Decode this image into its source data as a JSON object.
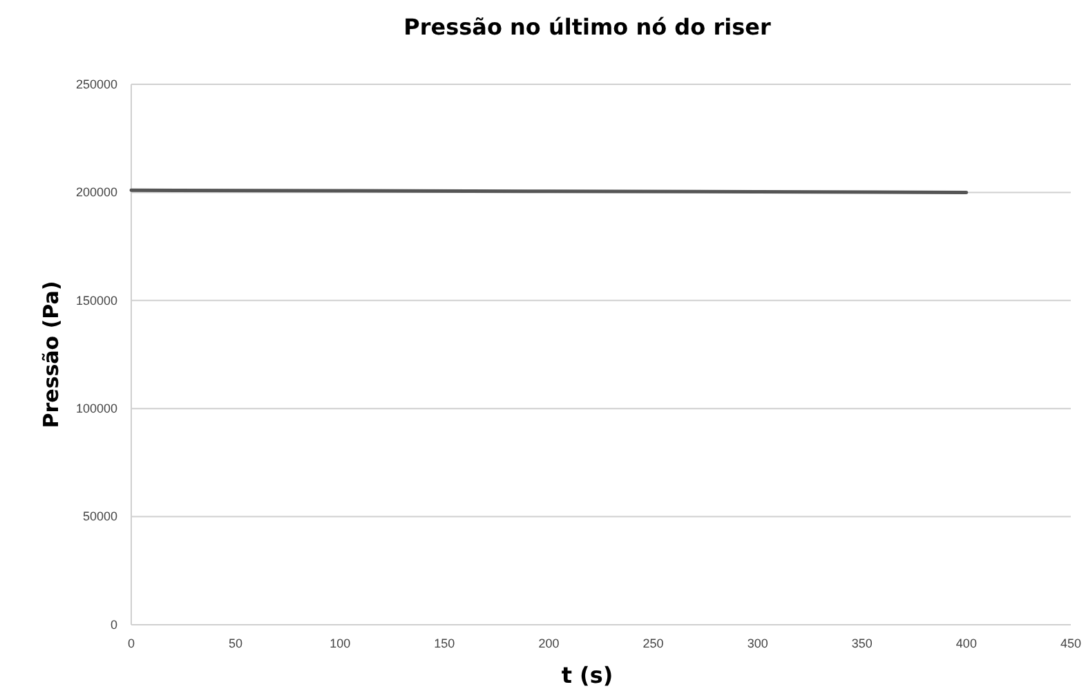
{
  "chart_data": {
    "type": "line",
    "title": "Pressão no último nó do riser",
    "xlabel": "t (s)",
    "ylabel": "Pressão (Pa)",
    "x": [
      0,
      100,
      200,
      300,
      400
    ],
    "series": [
      {
        "color": "#555555",
        "values": [
          201000,
          200800,
          200500,
          200300,
          200000
        ]
      }
    ],
    "xlim": [
      0,
      450
    ],
    "xticks": [
      0,
      50,
      100,
      150,
      200,
      250,
      300,
      350,
      400,
      450
    ],
    "ylim": [
      0,
      250000
    ],
    "yticks": [
      0,
      50000,
      100000,
      150000,
      200000,
      250000
    ],
    "grid": "y",
    "marker": "none",
    "line_style": "solid"
  }
}
